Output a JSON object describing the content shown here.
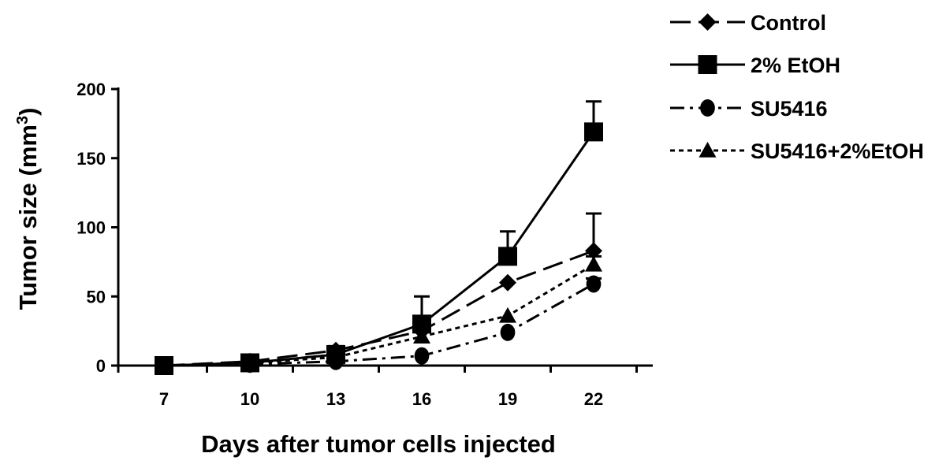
{
  "chart_data": {
    "type": "line",
    "title": "",
    "xlabel": "Days after tumor cells injected",
    "ylabel_main": "Tumor size (mm",
    "ylabel_sup": "3",
    "ylabel_close": ")",
    "x": [
      7,
      10,
      13,
      16,
      19,
      22
    ],
    "x_tick_labels": [
      "7",
      "10",
      "13",
      "16",
      "19",
      "22"
    ],
    "ylim": [
      0,
      200
    ],
    "y_ticks": [
      0,
      50,
      100,
      150,
      200
    ],
    "y_tick_labels": [
      "0",
      "50",
      "100",
      "150",
      "200"
    ],
    "grid": false,
    "legend_position": "top-right",
    "series": [
      {
        "name": "Control",
        "marker": "diamond",
        "dash": "long-dash",
        "values": [
          0,
          3,
          11,
          25,
          60,
          83
        ],
        "errors": [
          0,
          2,
          3,
          0,
          0,
          27
        ]
      },
      {
        "name": "2% EtOH",
        "marker": "square",
        "dash": "solid",
        "values": [
          0,
          2,
          8,
          30,
          79,
          169
        ],
        "errors": [
          0,
          1,
          2,
          20,
          18,
          22
        ]
      },
      {
        "name": "SU5416",
        "marker": "circle",
        "dash": "dash-dot",
        "values": [
          0,
          1,
          3,
          7,
          24,
          59
        ],
        "errors": [
          0,
          1,
          1,
          0,
          0,
          4
        ]
      },
      {
        "name": "SU5416+2%EtOH",
        "marker": "triangle",
        "dash": "dotted",
        "values": [
          0,
          2,
          6,
          21,
          36,
          73
        ],
        "errors": [
          0,
          1,
          2,
          0,
          0,
          6
        ]
      }
    ]
  }
}
